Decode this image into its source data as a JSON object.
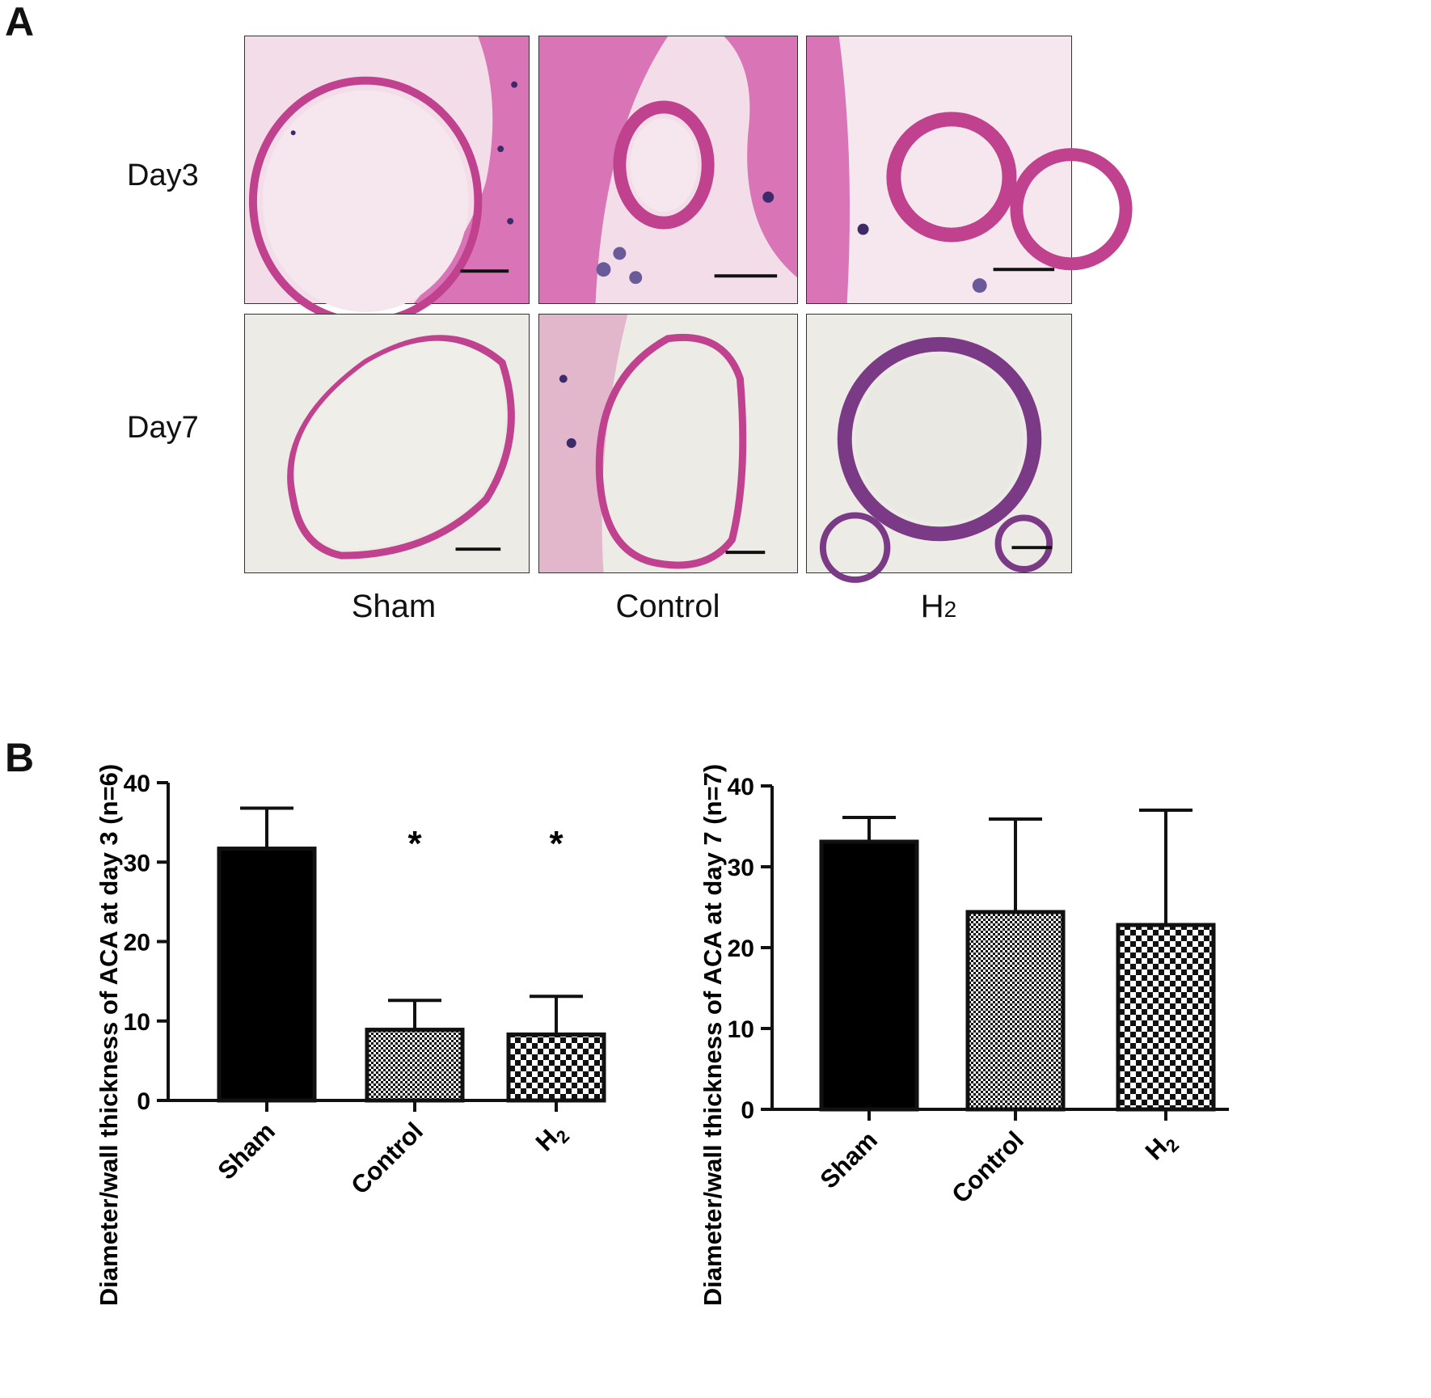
{
  "panel_a": {
    "letter": "A",
    "rows": [
      "Day3",
      "Day7"
    ],
    "columns": [
      "Sham",
      "Control",
      "H2"
    ],
    "column_display": {
      "sham": "Sham",
      "control": "Control",
      "h2_base": "H",
      "h2_sub": "2"
    },
    "stain_colors": {
      "day3_bg": "#f3dde8",
      "day3_tissue": "#d975b6",
      "day7_bg": "#ecebe6",
      "wall": "#c0428e",
      "nuclei": "#3c2a6a"
    }
  },
  "panel_b": {
    "letter": "B"
  },
  "chart_data": [
    {
      "type": "bar",
      "ylabel": "Diameter/wall thickness of ACA at day 3 (n=6)",
      "categories": [
        "Sham",
        "Control",
        "H2"
      ],
      "category_display": [
        {
          "base": "Sham",
          "sub": ""
        },
        {
          "base": "Control",
          "sub": ""
        },
        {
          "base": "H",
          "sub": "2"
        }
      ],
      "values": [
        31.7,
        8.9,
        8.3
      ],
      "errors": [
        5.1,
        3.7,
        4.8
      ],
      "significance": [
        "",
        "*",
        "*"
      ],
      "fills": [
        "solid",
        "fine-checker",
        "coarse-checker"
      ],
      "ylim": [
        0,
        40
      ],
      "yticks": [
        0,
        10,
        20,
        30,
        40
      ],
      "grid": false
    },
    {
      "type": "bar",
      "ylabel": "Diameter/wall thickness of ACA at day 7 (n=7)",
      "categories": [
        "Sham",
        "Control",
        "H2"
      ],
      "category_display": [
        {
          "base": "Sham",
          "sub": ""
        },
        {
          "base": "Control",
          "sub": ""
        },
        {
          "base": "H",
          "sub": "2"
        }
      ],
      "values": [
        33.1,
        24.4,
        22.8
      ],
      "errors": [
        3.0,
        11.5,
        14.2
      ],
      "significance": [
        "",
        "",
        ""
      ],
      "fills": [
        "solid",
        "fine-checker",
        "coarse-checker"
      ],
      "ylim": [
        0,
        40
      ],
      "yticks": [
        0,
        10,
        20,
        30,
        40
      ],
      "grid": false
    }
  ]
}
